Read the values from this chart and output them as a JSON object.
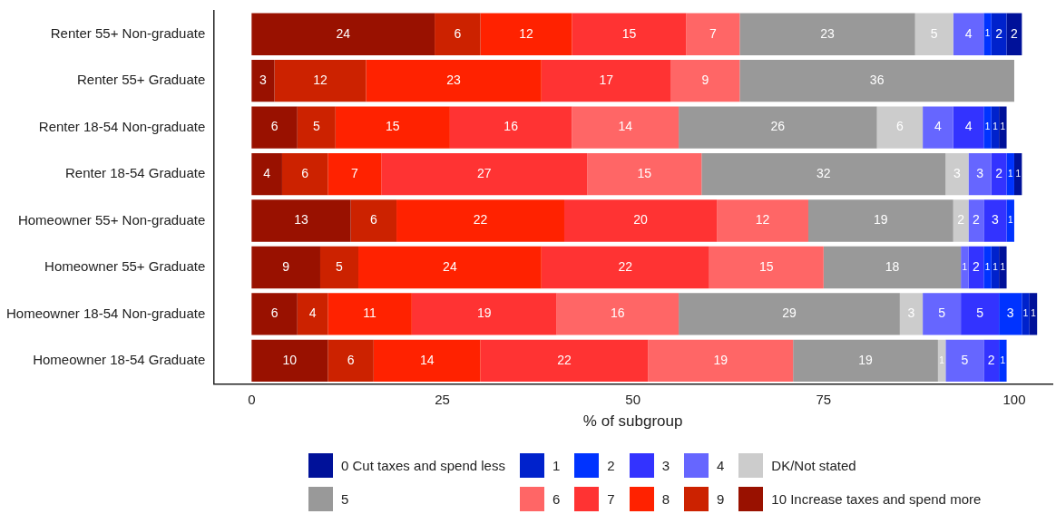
{
  "chart_data": {
    "type": "bar",
    "orientation": "horizontal",
    "stacked": true,
    "xlabel": "% of subgroup",
    "xlim": [
      -5,
      105
    ],
    "xticks": [
      0,
      25,
      50,
      75,
      100
    ],
    "grid": false,
    "legend": "bottom",
    "categories": [
      "Renter 55+ Non-graduate",
      "Renter 55+ Graduate",
      "Renter 18-54 Non-graduate",
      "Renter 18-54 Graduate",
      "Homeowner 55+ Non-graduate",
      "Homeowner 55+ Graduate",
      "Homeowner 18-54 Non-graduate",
      "Homeowner 18-54 Graduate"
    ],
    "series": [
      {
        "name": "10 Increase taxes and spend more",
        "color": "#991100",
        "values": [
          24,
          3,
          6,
          4,
          13,
          9,
          6,
          10
        ],
        "value_labels": [
          "24",
          "3",
          "6",
          "4",
          "13",
          "9",
          "6",
          "10"
        ]
      },
      {
        "name": "9",
        "color": "#cc2200",
        "values": [
          6,
          12,
          5,
          6,
          6,
          5,
          4,
          6
        ],
        "value_labels": [
          "6",
          "12",
          "5",
          "6",
          "6",
          "5",
          "4",
          "6"
        ]
      },
      {
        "name": "8",
        "color": "#ff2200",
        "values": [
          12,
          23,
          15,
          7,
          22,
          24,
          11,
          14
        ],
        "value_labels": [
          "12",
          "23",
          "15",
          "7",
          "22",
          "24",
          "11",
          "14"
        ]
      },
      {
        "name": "7",
        "color": "#ff3333",
        "values": [
          15,
          17,
          16,
          27,
          20,
          22,
          19,
          22
        ],
        "value_labels": [
          "15",
          "17",
          "16",
          "27",
          "20",
          "22",
          "19",
          "22"
        ]
      },
      {
        "name": "6",
        "color": "#ff6666",
        "values": [
          7,
          9,
          14,
          15,
          12,
          15,
          16,
          19
        ],
        "value_labels": [
          "7",
          "9",
          "14",
          "15",
          "12",
          "15",
          "16",
          "19"
        ]
      },
      {
        "name": "5",
        "color": "#999999",
        "values": [
          23,
          36,
          26,
          32,
          19,
          18,
          29,
          19
        ],
        "value_labels": [
          "23",
          "36",
          "26",
          "32",
          "19",
          "18",
          "29",
          "19"
        ]
      },
      {
        "name": "DK/Not stated",
        "color": "#cccccc",
        "values": [
          5,
          null,
          6,
          3,
          2,
          0,
          3,
          1
        ],
        "value_labels": [
          "5",
          null,
          "6",
          "3",
          "2",
          null,
          "3",
          "1"
        ]
      },
      {
        "name": "4",
        "color": "#6666ff",
        "values": [
          4,
          null,
          4,
          3,
          2,
          1,
          5,
          5
        ],
        "value_labels": [
          "4",
          null,
          "4",
          "3",
          "2",
          "1",
          "5",
          "5"
        ]
      },
      {
        "name": "3",
        "color": "#3333ff",
        "values": [
          0,
          null,
          4,
          2,
          3,
          2,
          5,
          2
        ],
        "value_labels": [
          null,
          null,
          "4",
          "2",
          "3",
          "2",
          "5",
          "2"
        ]
      },
      {
        "name": "2",
        "color": "#0033ff",
        "values": [
          1,
          null,
          1,
          1,
          1,
          1,
          3,
          1
        ],
        "value_labels": [
          "1",
          null,
          "1",
          "1",
          "1",
          "1",
          "3",
          "1"
        ]
      },
      {
        "name": "1",
        "color": "#0022cc",
        "values": [
          2,
          null,
          1,
          0,
          0,
          1,
          1,
          0
        ],
        "value_labels": [
          "2",
          null,
          "1",
          null,
          null,
          "1",
          "1",
          null
        ]
      },
      {
        "name": "0 Cut taxes and spend less",
        "color": "#001199",
        "values": [
          2,
          0,
          1,
          1,
          0,
          1,
          1,
          0
        ],
        "value_labels": [
          "2",
          null,
          "1",
          "1",
          null,
          "1",
          "1",
          null
        ]
      }
    ]
  }
}
